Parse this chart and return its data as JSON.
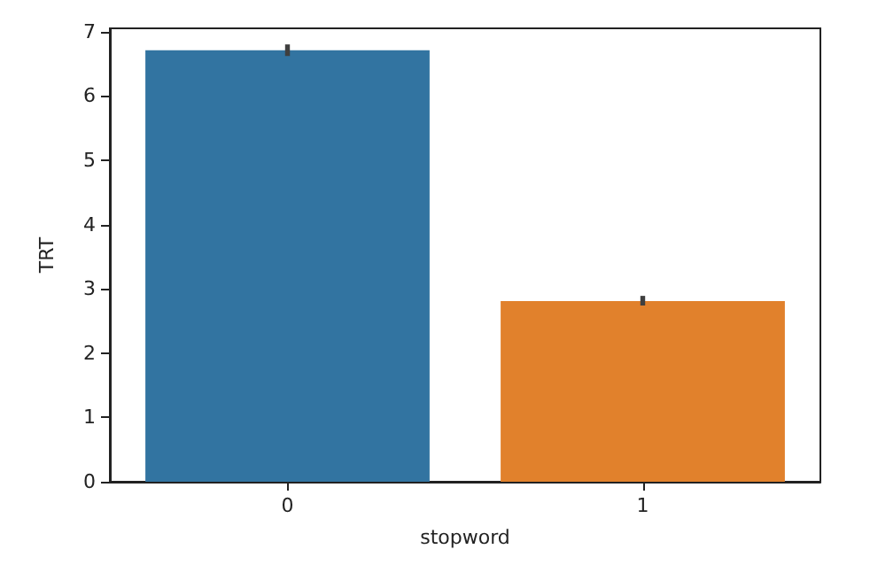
{
  "chart_data": {
    "type": "bar",
    "xlabel": "stopword",
    "ylabel": "TRT",
    "categories": [
      "0",
      "1"
    ],
    "values": [
      6.71,
      2.81
    ],
    "colors": [
      "#3274a1",
      "#e1812c"
    ],
    "errors": [
      [
        6.62,
        6.8
      ],
      [
        2.74,
        2.89
      ]
    ],
    "ylim": [
      0,
      7.05
    ],
    "yticks": [
      0,
      1,
      2,
      3,
      4,
      5,
      6,
      7
    ],
    "grid": false
  }
}
